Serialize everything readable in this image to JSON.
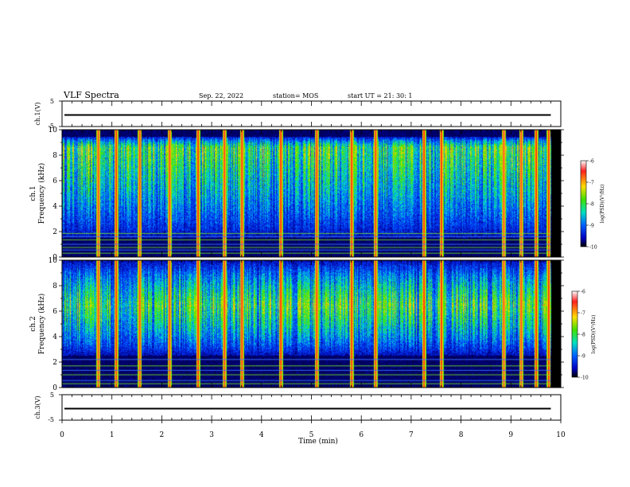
{
  "header": {
    "title": "VLF Spectra",
    "date": "Sep. 22, 2022",
    "station": "station= MOS",
    "start": "start  UT =   21: 30: 1"
  },
  "chart_data": [
    {
      "type": "line",
      "id": "ch1_voltage",
      "ylabel": "ch.1(V)",
      "ylim": [
        -5,
        5
      ],
      "yticks": [
        "5",
        "-5"
      ],
      "xlim": [
        0,
        10
      ],
      "series": [
        {
          "values_approx": 0,
          "x_end": 9.8
        }
      ]
    },
    {
      "type": "heatmap",
      "id": "ch1_spectrogram",
      "ylabel": "ch.1\nFrequency (kHz)",
      "ylabel_lines": [
        "ch.1",
        "Frequency (kHz)"
      ],
      "ylim": [
        0,
        10
      ],
      "yticks": [
        "0",
        "2",
        "4",
        "6",
        "8",
        "10"
      ],
      "xlim": [
        0,
        10
      ],
      "data_end_min": 9.8,
      "colorbar": {
        "label": "log(PSD)(V²/Hz)",
        "ticks": [
          "-6",
          "-7",
          "-8",
          "-9",
          "-10"
        ],
        "range": [
          -10,
          -6
        ]
      },
      "band_khz": [
        1.5,
        9.5
      ],
      "band_center_khz": 8.6,
      "spike_times_min": [
        0.72,
        1.08,
        1.55,
        2.15,
        2.72,
        3.25,
        3.6,
        4.38,
        5.1,
        5.8,
        6.28,
        7.25,
        7.6,
        8.85,
        9.2,
        9.5,
        9.75
      ],
      "tone_lines_khz": [
        0.3,
        0.55,
        0.75,
        1.0,
        1.35,
        1.6,
        1.85
      ]
    },
    {
      "type": "heatmap",
      "id": "ch2_spectrogram",
      "ylabel": "ch.2\nFrequency (kHz)",
      "ylabel_lines": [
        "ch.2",
        "Frequency (kHz)"
      ],
      "ylim": [
        0,
        10
      ],
      "yticks": [
        "0",
        "2",
        "4",
        "6",
        "8",
        "10"
      ],
      "xlim": [
        0,
        10
      ],
      "data_end_min": 9.8,
      "colorbar": {
        "label": "log(PSD)(V²/Hz)",
        "ticks": [
          "-6",
          "-7",
          "-8",
          "-9",
          "-10"
        ],
        "range": [
          -10,
          -6
        ]
      },
      "band_khz": [
        2.5,
        10
      ],
      "band_center_khz": 6.5,
      "spike_times_min": [
        0.72,
        1.08,
        1.55,
        2.15,
        2.72,
        3.25,
        3.6,
        4.38,
        5.1,
        5.8,
        6.28,
        7.25,
        7.6,
        8.85,
        9.2,
        9.5,
        9.75
      ],
      "tone_lines_khz": [
        0.3,
        0.55,
        1.0,
        1.35,
        1.7,
        2.2
      ]
    },
    {
      "type": "line",
      "id": "ch3_voltage",
      "ylabel": "ch.3(V)",
      "ylim": [
        -5,
        5
      ],
      "yticks": [
        "5",
        "-5"
      ],
      "xlim": [
        0,
        10
      ],
      "xlabel": "Time (min)",
      "xticks": [
        "0",
        "1",
        "2",
        "3",
        "4",
        "5",
        "6",
        "7",
        "8",
        "9",
        "10"
      ],
      "series": [
        {
          "values_approx": 0,
          "x_end": 9.8
        }
      ]
    }
  ]
}
